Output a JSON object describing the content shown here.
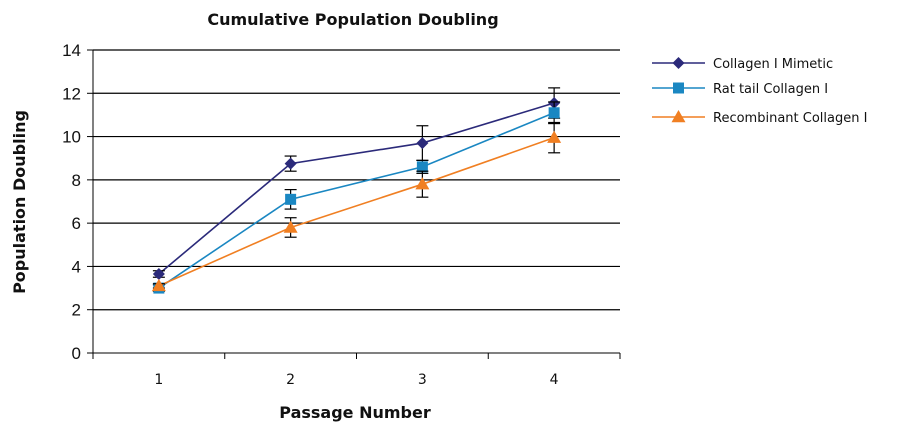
{
  "chart_data": {
    "type": "line",
    "title": "Cumulative Population Doubling",
    "xlabel": "Passage Number",
    "ylabel": "Population Doubling",
    "categories": [
      "1",
      "2",
      "3",
      "4"
    ],
    "ylim": [
      0,
      14
    ],
    "yticks": [
      0,
      2,
      4,
      6,
      8,
      10,
      12,
      14
    ],
    "grid": "horizontal",
    "legend_position": "right",
    "series": [
      {
        "name": "Collagen I Mimetic",
        "color": "#2b2a7a",
        "marker": "diamond",
        "values": [
          3.65,
          8.75,
          9.7,
          11.55
        ],
        "errors": [
          0.15,
          0.35,
          0.8,
          0.7
        ]
      },
      {
        "name": "Rat tail Collagen I",
        "color": "#1a87c2",
        "marker": "square",
        "values": [
          3.0,
          7.1,
          8.6,
          11.1
        ],
        "errors": [
          0.15,
          0.45,
          0.3,
          0.5
        ]
      },
      {
        "name": "Recombinant Collagen I",
        "color": "#f07f22",
        "marker": "triangle",
        "values": [
          3.1,
          5.8,
          7.8,
          9.95
        ],
        "errors": [
          0.1,
          0.45,
          0.6,
          0.7
        ]
      }
    ]
  }
}
